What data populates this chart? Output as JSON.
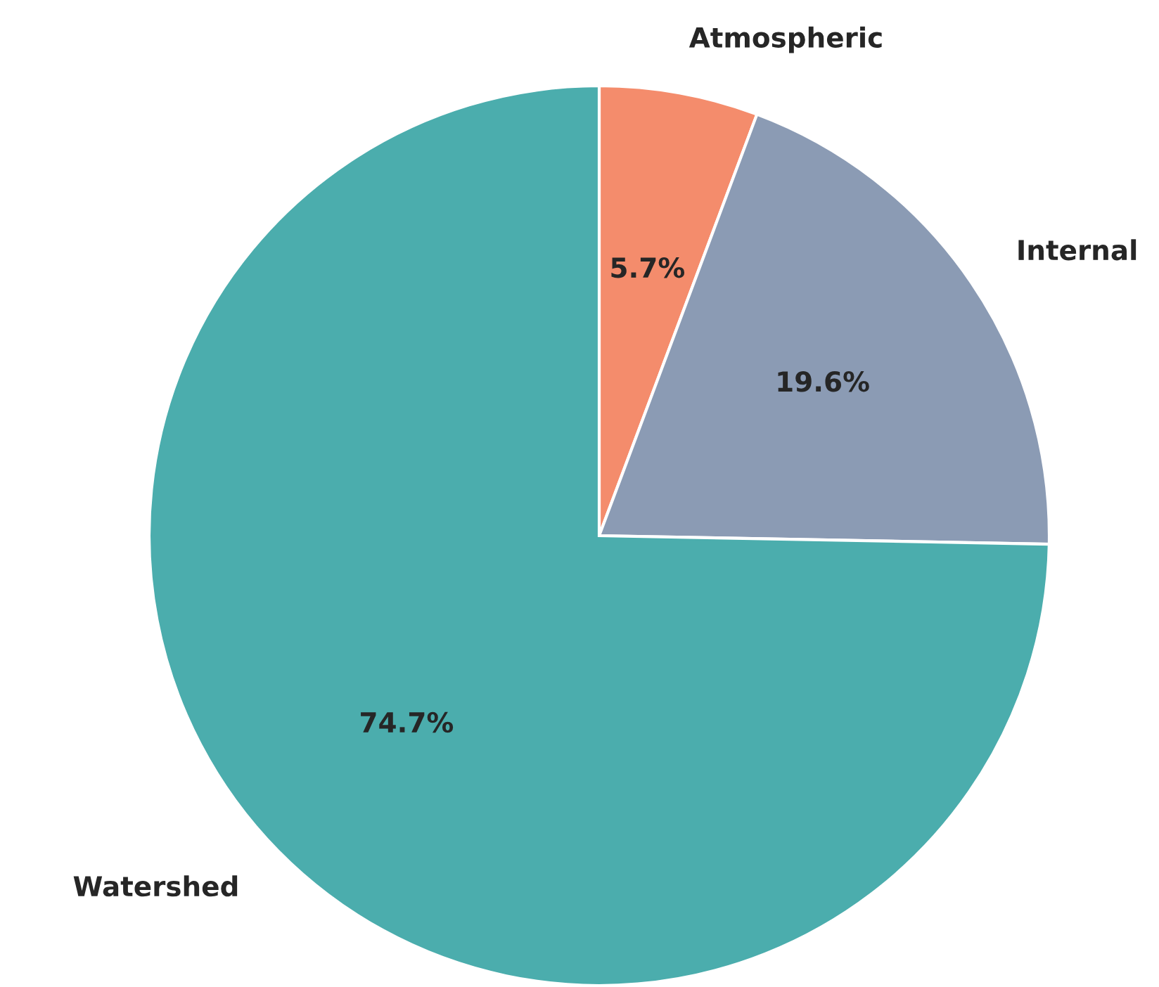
{
  "chart_data": {
    "type": "pie",
    "categories": [
      "Atmospheric",
      "Internal",
      "Watershed"
    ],
    "values": [
      5.7,
      19.6,
      74.7
    ],
    "colors": [
      "#f48c6c",
      "#8b9bb4",
      "#4badad"
    ],
    "value_labels": [
      "5.7%",
      "19.6%",
      "74.7%"
    ],
    "legend": false
  }
}
